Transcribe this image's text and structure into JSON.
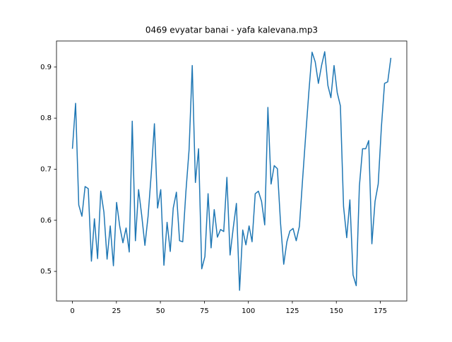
{
  "chart_data": {
    "type": "line",
    "title": "0469 evyatar banai - yafa kalevana.mp3",
    "x": [
      0,
      1.8,
      3.6,
      5.4,
      7.2,
      9,
      10.8,
      12.5,
      14.3,
      16.1,
      17.9,
      19.7,
      21.5,
      23.3,
      25.1,
      26.9,
      28.7,
      30.5,
      32.3,
      34,
      35.8,
      37.6,
      39.4,
      41.2,
      43,
      44.8,
      46.6,
      48.4,
      50.2,
      52,
      53.8,
      55.6,
      57.3,
      59.1,
      60.9,
      62.7,
      64.5,
      66.3,
      68.1,
      69.9,
      71.7,
      73.5,
      75.3,
      77.1,
      78.8,
      80.6,
      82.4,
      84.2,
      86,
      87.8,
      89.6,
      91.4,
      93.2,
      95,
      96.8,
      98.6,
      100.4,
      102.1,
      103.9,
      105.7,
      107.5,
      109.3,
      111.1,
      112.9,
      114.7,
      116.5,
      118.3,
      120.1,
      121.9,
      123.6,
      125.4,
      127.2,
      129,
      130.8,
      132.6,
      134.4,
      136.2,
      138,
      139.8,
      141.6,
      143.4,
      145.2,
      146.9,
      148.7,
      150.5,
      152.3,
      154.1,
      155.9,
      157.7,
      159.5,
      161.3,
      163.1,
      164.9,
      166.7,
      168.4,
      170.2,
      172,
      173.8,
      175.6,
      177.4,
      179.2,
      181
    ],
    "series": [
      {
        "color": "#1f77b4",
        "values": [
          0.74,
          0.829,
          0.63,
          0.608,
          0.666,
          0.662,
          0.52,
          0.603,
          0.525,
          0.657,
          0.616,
          0.524,
          0.589,
          0.511,
          0.635,
          0.588,
          0.556,
          0.585,
          0.538,
          0.794,
          0.56,
          0.66,
          0.609,
          0.551,
          0.608,
          0.691,
          0.789,
          0.624,
          0.66,
          0.512,
          0.596,
          0.539,
          0.624,
          0.655,
          0.56,
          0.558,
          0.656,
          0.738,
          0.903,
          0.674,
          0.74,
          0.505,
          0.529,
          0.652,
          0.546,
          0.621,
          0.567,
          0.582,
          0.578,
          0.684,
          0.532,
          0.585,
          0.633,
          0.463,
          0.581,
          0.552,
          0.589,
          0.558,
          0.652,
          0.657,
          0.637,
          0.591,
          0.821,
          0.671,
          0.707,
          0.701,
          0.594,
          0.514,
          0.558,
          0.579,
          0.584,
          0.56,
          0.588,
          0.679,
          0.767,
          0.852,
          0.929,
          0.91,
          0.868,
          0.903,
          0.93,
          0.864,
          0.84,
          0.903,
          0.85,
          0.824,
          0.627,
          0.566,
          0.64,
          0.493,
          0.472,
          0.667,
          0.74,
          0.74,
          0.756,
          0.554,
          0.637,
          0.671,
          0.782,
          0.868,
          0.871,
          0.918
        ]
      }
    ],
    "xlim": [
      -9.05,
      190.05
    ],
    "ylim": [
      0.442,
      0.951
    ],
    "xticks": [
      0,
      25,
      50,
      75,
      100,
      125,
      150,
      175
    ],
    "yticks": [
      0.5,
      0.6,
      0.7,
      0.8,
      0.9
    ]
  }
}
